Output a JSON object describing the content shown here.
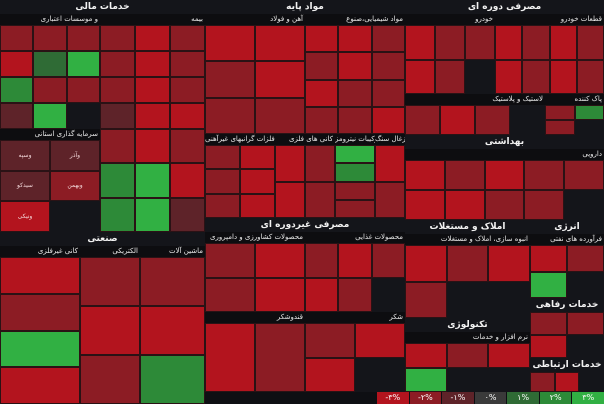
{
  "chart_data": {
    "type": "heatmap",
    "legend": [
      "-۳%",
      "-۲%",
      "-۱%",
      "۰%",
      "۱%",
      "۲%",
      "۳%"
    ],
    "legend_colors": [
      "#b3141e",
      "#8c1c24",
      "#5e2329",
      "#3a3a3a",
      "#2f6b35",
      "#2d8a38",
      "#31b043"
    ],
    "sectors": [
      {
        "title": "خدمات مالی",
        "subs": [
          {
            "title": "بیمه",
            "tiles": [
              {
                "label": "",
                "change": -2.4
              },
              {
                "label": "",
                "change": -2.9
              },
              {
                "label": "",
                "change": -2.1
              },
              {
                "label": "",
                "change": -1.8
              },
              {
                "label": "",
                "change": -2.6
              },
              {
                "label": "",
                "change": -2.2
              },
              {
                "label": "",
                "change": -1.5
              },
              {
                "label": "",
                "change": -2.8
              },
              {
                "label": "",
                "change": -2.0
              },
              {
                "label": "",
                "change": -1.2
              },
              {
                "label": "",
                "change": -2.5
              },
              {
                "label": "",
                "change": -2.7
              }
            ]
          },
          {
            "title": "و موسسات اعتباری",
            "tiles": [
              {
                "label": "",
                "change": -2.3
              },
              {
                "label": "",
                "change": -2.0
              },
              {
                "label": "",
                "change": -1.6
              },
              {
                "label": "",
                "change": -2.8
              },
              {
                "label": "",
                "change": 1.4
              },
              {
                "label": "",
                "change": 2.6
              },
              {
                "label": "",
                "change": 2.1
              },
              {
                "label": "",
                "change": -1.9
              },
              {
                "label": "",
                "change": -2.4
              },
              {
                "label": "",
                "change": -1.1
              },
              {
                "label": "",
                "change": 2.9
              }
            ]
          },
          {
            "title": "سرمایه گذاری استانی",
            "tiles": [
              {
                "label": "وسپه",
                "change": -0.6
              },
              {
                "label": "وآذر",
                "change": -0.4
              },
              {
                "label": "سیدکو",
                "change": -0.8
              },
              {
                "label": "وبهمن",
                "change": -2.3
              },
              {
                "label": "ونیکی",
                "change": -2.6
              }
            ]
          },
          {
            "title": "",
            "tiles": [
              {
                "label": "",
                "change": -2.2
              },
              {
                "label": "",
                "change": -2.7
              },
              {
                "label": "",
                "change": -2.4
              },
              {
                "label": "",
                "change": 2.2
              },
              {
                "label": "",
                "change": 2.8
              },
              {
                "label": "",
                "change": -2.9
              },
              {
                "label": "",
                "change": 1.9
              },
              {
                "label": "",
                "change": 2.5
              },
              {
                "label": "",
                "change": -1.4
              }
            ]
          }
        ]
      },
      {
        "title": "مواد پایه",
        "subs": [
          {
            "title": "مواد شیمیایی،صنوع",
            "tiles": [
              {
                "label": "",
                "change": -2.5
              },
              {
                "label": "",
                "change": -2.8
              },
              {
                "label": "",
                "change": -2.2
              },
              {
                "label": "",
                "change": -1.9
              },
              {
                "label": "",
                "change": -2.6
              },
              {
                "label": "",
                "change": -2.0
              },
              {
                "label": "",
                "change": -2.9
              },
              {
                "label": "",
                "change": -1.7
              },
              {
                "label": "",
                "change": -2.4
              },
              {
                "label": "",
                "change": -2.3
              },
              {
                "label": "",
                "change": -2.1
              },
              {
                "label": "",
                "change": -2.7
              }
            ]
          },
          {
            "title": "آهن و فولاد",
            "tiles": [
              {
                "label": "",
                "change": -2.9
              },
              {
                "label": "",
                "change": -2.6
              },
              {
                "label": "",
                "change": -2.2
              },
              {
                "label": "",
                "change": -2.8
              },
              {
                "label": "",
                "change": -1.5
              },
              {
                "label": "",
                "change": -2.4
              }
            ]
          },
          {
            "title": "فلزات گرانبهای غیرآهنی",
            "tiles": [
              {
                "label": "",
                "change": -2.3
              },
              {
                "label": "",
                "change": -2.7
              },
              {
                "label": "",
                "change": -1.8
              },
              {
                "label": "",
                "change": -2.5
              },
              {
                "label": "",
                "change": -2.1
              },
              {
                "label": "",
                "change": -2.9
              }
            ]
          },
          {
            "title": "کانی های فلزی",
            "tiles": [
              {
                "label": "",
                "change": -2.6
              },
              {
                "label": "",
                "change": -2.0
              },
              {
                "label": "",
                "change": -2.8
              },
              {
                "label": "",
                "change": -2.4
              }
            ]
          },
          {
            "title": "ترکیبات نیترومز",
            "tiles": [
              {
                "label": "",
                "change": 2.7
              },
              {
                "label": "",
                "change": 2.3
              },
              {
                "label": "",
                "change": -2.2
              },
              {
                "label": "",
                "change": -1.6
              }
            ]
          },
          {
            "title": "زغال سنگ",
            "tiles": [
              {
                "label": "",
                "change": -2.5
              },
              {
                "label": "",
                "change": -2.1
              }
            ]
          }
        ]
      },
      {
        "title": "مصرفی دوره ای",
        "subs": [
          {
            "title": "قطعات خودرو",
            "tiles": [
              {
                "label": "",
                "change": -2.7
              },
              {
                "label": "",
                "change": -2.3
              },
              {
                "label": "",
                "change": -2.9
              },
              {
                "label": "",
                "change": -2.0
              },
              {
                "label": "",
                "change": -2.5
              },
              {
                "label": "",
                "change": -1.8
              },
              {
                "label": "",
                "change": -2.6
              },
              {
                "label": "",
                "change": -2.2
              }
            ]
          },
          {
            "title": "خودرو",
            "tiles": [
              {
                "label": "",
                "change": -2.8
              },
              {
                "label": "",
                "change": -2.4
              },
              {
                "label": "",
                "change": -2.1
              },
              {
                "label": "",
                "change": -2.6
              },
              {
                "label": "",
                "change": -1.9
              }
            ]
          },
          {
            "title": "لاستیک و پلاستیک",
            "tiles": [
              {
                "label": "",
                "change": -2.3
              },
              {
                "label": "",
                "change": -2.7
              },
              {
                "label": "",
                "change": -2.0
              }
            ]
          },
          {
            "title": "پاک کننده",
            "tiles": [
              {
                "label": "",
                "change": -2.4
              },
              {
                "label": "",
                "change": 2.4
              },
              {
                "label": "",
                "change": -2.2
              }
            ]
          }
        ]
      },
      {
        "title": "بهداشتی",
        "subs": [
          {
            "title": "دارویی",
            "tiles": [
              {
                "label": "",
                "change": -2.6
              },
              {
                "label": "",
                "change": -2.1
              },
              {
                "label": "",
                "change": -2.8
              },
              {
                "label": "",
                "change": -2.3
              },
              {
                "label": "",
                "change": -1.7
              },
              {
                "label": "",
                "change": -2.5
              },
              {
                "label": "",
                "change": -2.9
              },
              {
                "label": "",
                "change": -2.0
              },
              {
                "label": "",
                "change": -2.4
              }
            ]
          }
        ]
      },
      {
        "title": "املاک و مستغلات",
        "subs": [
          {
            "title": "انبوه سازی، املاک و مستغلات",
            "tiles": [
              {
                "label": "",
                "change": -2.5
              },
              {
                "label": "",
                "change": -2.2
              },
              {
                "label": "",
                "change": -2.8
              },
              {
                "label": "",
                "change": -2.0
              }
            ]
          }
        ]
      },
      {
        "title": "انرژی",
        "subs": [
          {
            "title": "فرآورده های نفتی",
            "tiles": [
              {
                "label": "",
                "change": -2.7
              },
              {
                "label": "",
                "change": -2.3
              },
              {
                "label": "",
                "change": 2.6
              }
            ]
          }
        ]
      },
      {
        "title": "مصرفی غیردوره ای",
        "subs": [
          {
            "title": "محصولات کشاورزی و دامپروری",
            "tiles": [
              {
                "label": "",
                "change": -2.4
              },
              {
                "label": "",
                "change": -2.8
              },
              {
                "label": "",
                "change": -2.1
              },
              {
                "label": "",
                "change": -2.6
              }
            ]
          },
          {
            "title": "محصولات غذایی",
            "tiles": [
              {
                "label": "",
                "change": -2.3
              },
              {
                "label": "",
                "change": -2.9
              },
              {
                "label": "",
                "change": -1.8
              },
              {
                "label": "",
                "change": -2.5
              },
              {
                "label": "",
                "change": -2.2
              }
            ]
          },
          {
            "title": "قندوشکر",
            "tiles": [
              {
                "label": "",
                "change": -2.7
              },
              {
                "label": "",
                "change": -2.4
              }
            ]
          },
          {
            "title": "شکر",
            "tiles": [
              {
                "label": "",
                "change": -2.0
              },
              {
                "label": "",
                "change": -2.6
              },
              {
                "label": "",
                "change": -2.9
              }
            ]
          }
        ]
      },
      {
        "title": "صنعتی",
        "subs": [
          {
            "title": "کانی غیرفلزی",
            "tiles": [
              {
                "label": "",
                "change": -2.5
              },
              {
                "label": "",
                "change": -2.1
              },
              {
                "label": "",
                "change": 2.7
              },
              {
                "label": "",
                "change": -2.8
              }
            ]
          },
          {
            "title": "الکتریکی",
            "tiles": [
              {
                "label": "",
                "change": -2.3
              },
              {
                "label": "",
                "change": -2.6
              },
              {
                "label": "",
                "change": -2.0
              }
            ]
          },
          {
            "title": "ماشین آلات",
            "tiles": [
              {
                "label": "",
                "change": -2.4
              },
              {
                "label": "",
                "change": -2.9
              },
              {
                "label": "",
                "change": 2.2
              }
            ]
          }
        ]
      },
      {
        "title": "تکنولوژی",
        "subs": [
          {
            "title": "نرم افزار و خدمات",
            "tiles": [
              {
                "label": "",
                "change": -2.6
              },
              {
                "label": "",
                "change": -2.2
              },
              {
                "label": "",
                "change": -2.8
              },
              {
                "label": "",
                "change": 2.5
              }
            ]
          }
        ]
      },
      {
        "title": "خدمات رفاهی",
        "subs": [
          {
            "title": "",
            "tiles": [
              {
                "label": "",
                "change": -2.4
              },
              {
                "label": "",
                "change": -2.0
              },
              {
                "label": "",
                "change": -2.7
              }
            ]
          }
        ]
      },
      {
        "title": "خدمات ارتباطی",
        "subs": [
          {
            "title": "",
            "tiles": [
              {
                "label": "",
                "change": -2.3
              },
              {
                "label": "",
                "change": -2.8
              }
            ]
          }
        ]
      }
    ]
  }
}
